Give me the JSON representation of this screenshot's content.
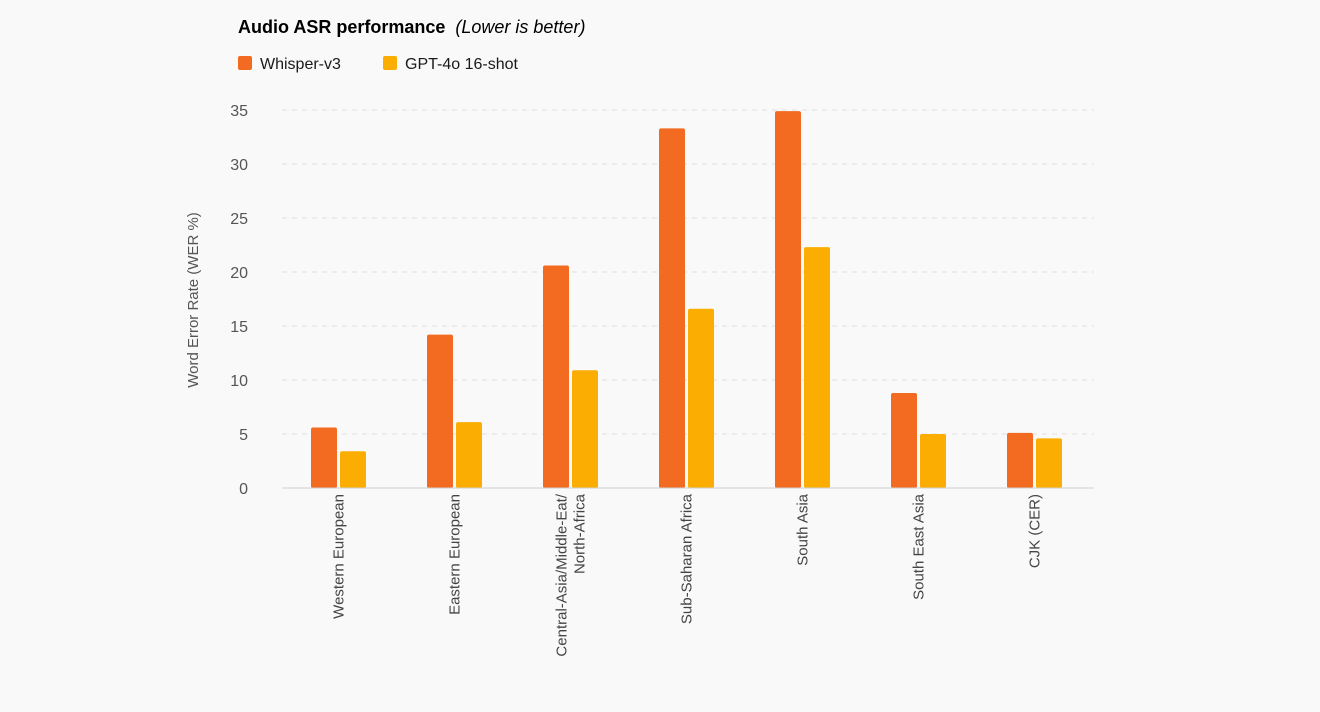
{
  "chart_data": {
    "type": "bar",
    "title": "Audio ASR performance",
    "subtitle": "(Lower is better)",
    "ylabel": "Word Error Rate (WER %)",
    "xlabel": "",
    "ylim": [
      0,
      35
    ],
    "yticks": [
      0,
      5,
      10,
      15,
      20,
      25,
      30,
      35
    ],
    "grid": true,
    "legend_position": "top-left",
    "categories": [
      "Western European",
      "Eastern European",
      "Central-Asia/Middle-Eat/ North-Africa",
      "Sub-Saharan Africa",
      "South Asia",
      "South East Asia",
      "CJK (CER)"
    ],
    "series": [
      {
        "name": "Whisper-v3",
        "color": "#f26b21",
        "values": [
          5.6,
          14.2,
          20.6,
          33.3,
          34.9,
          8.8,
          5.1
        ]
      },
      {
        "name": "GPT-4o 16-shot",
        "color": "#fcad02",
        "values": [
          3.4,
          6.1,
          10.9,
          16.6,
          22.3,
          5.0,
          4.6
        ]
      }
    ]
  }
}
